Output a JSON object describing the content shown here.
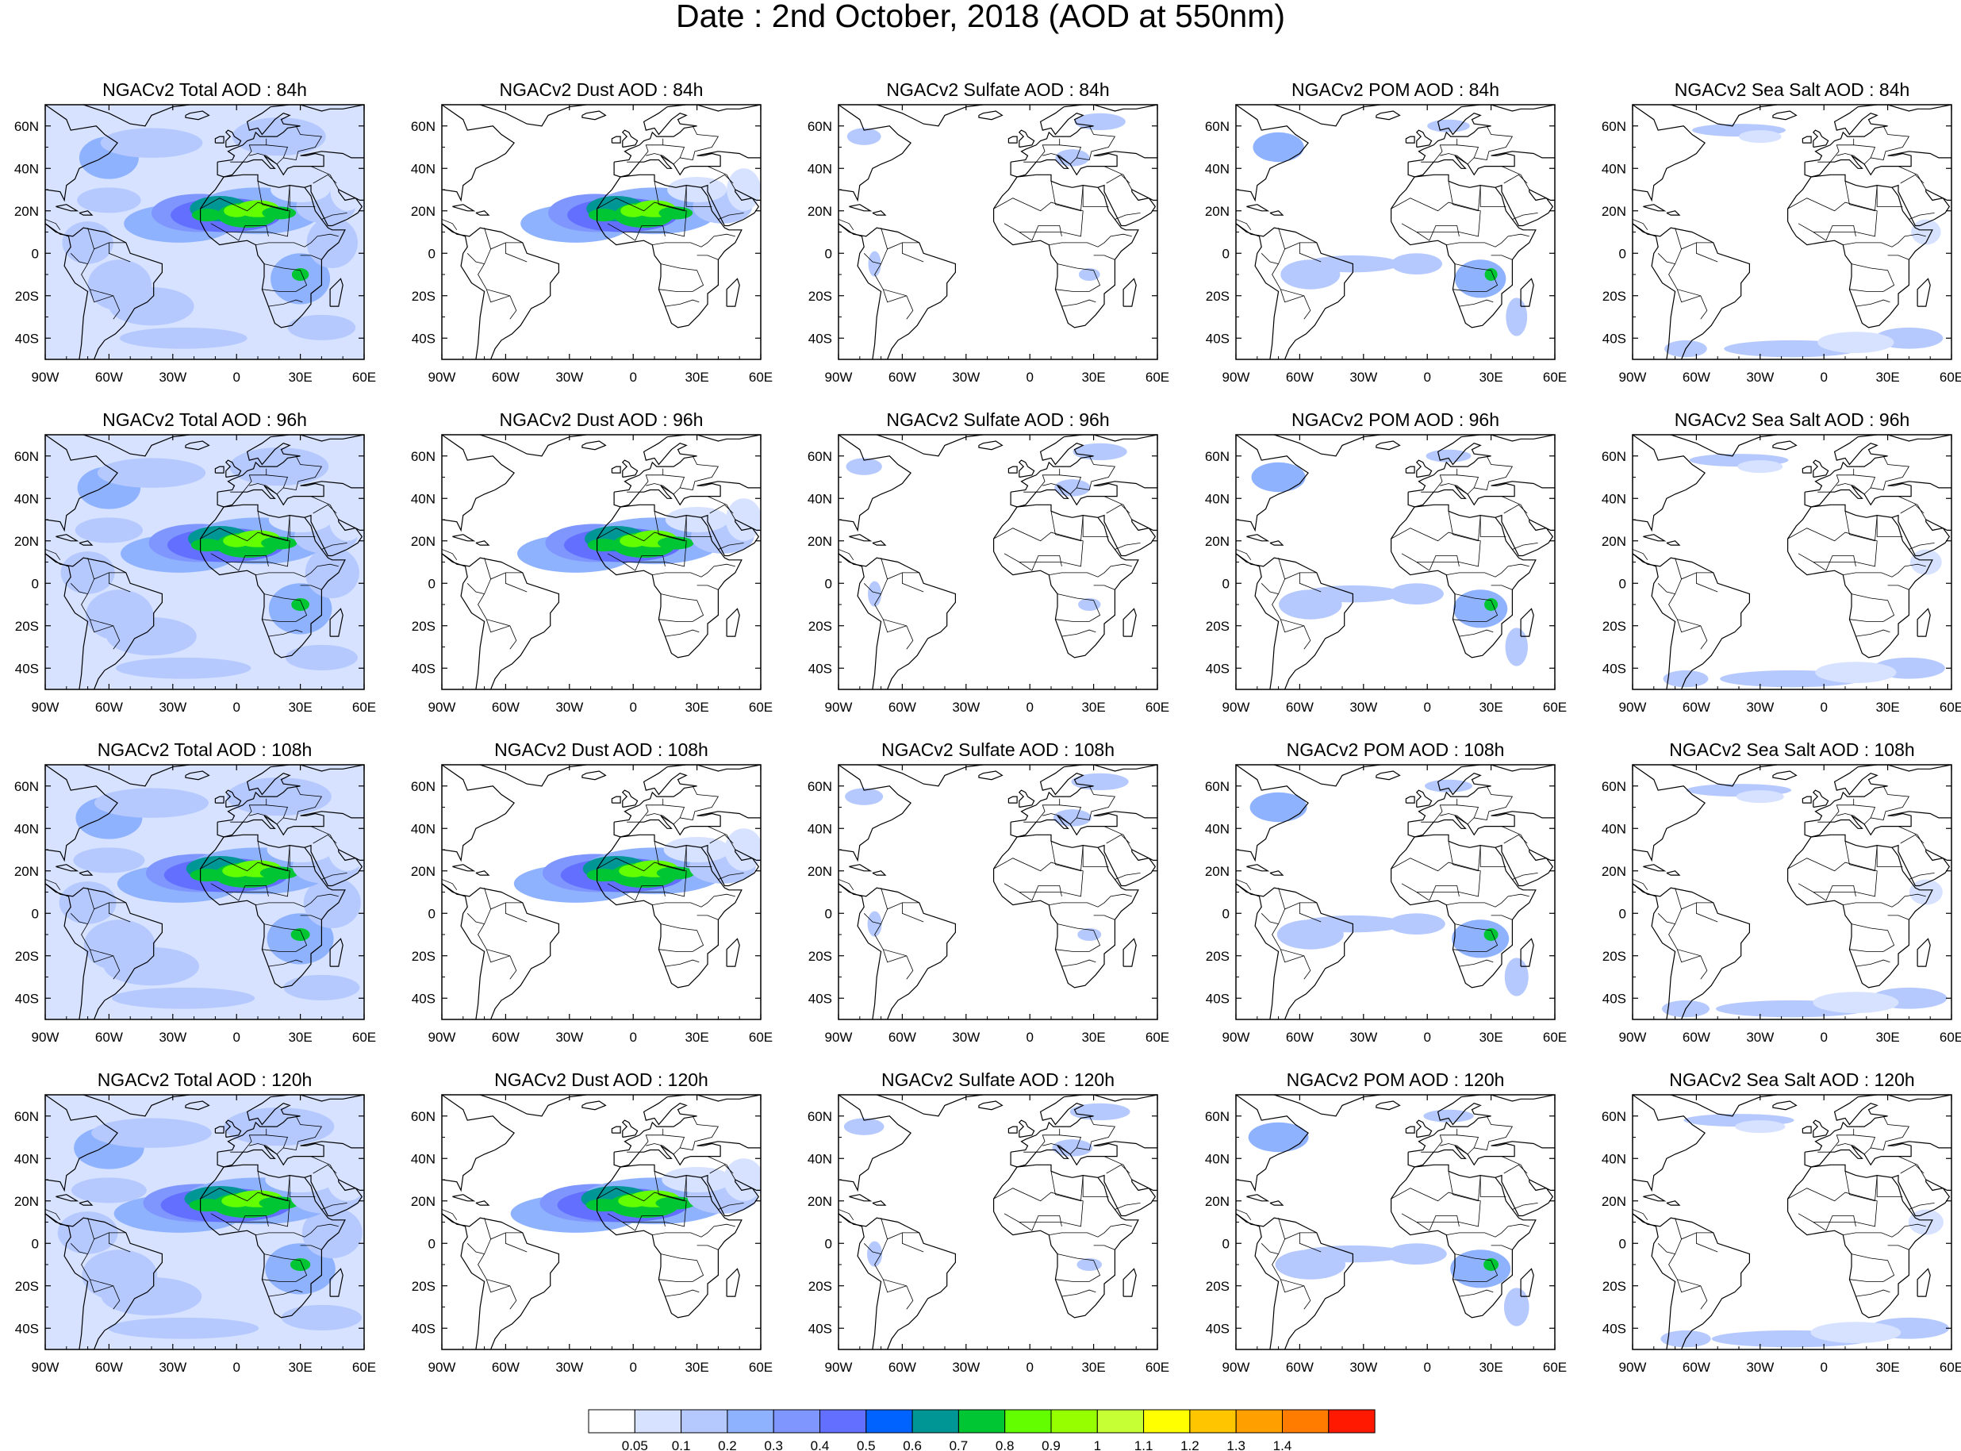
{
  "title": "Date : 2nd October, 2018 (AOD at 550nm)",
  "columns": [
    "Total",
    "Dust",
    "Sulfate",
    "POM",
    "Sea Salt"
  ],
  "forecast_hours": [
    "84h",
    "96h",
    "108h",
    "120h"
  ],
  "panel_titles": [
    [
      "NGACv2 Total AOD : 84h",
      "NGACv2 Dust AOD : 84h",
      "NGACv2 Sulfate AOD : 84h",
      "NGACv2 POM AOD : 84h",
      "NGACv2 Sea Salt AOD : 84h"
    ],
    [
      "NGACv2 Total AOD : 96h",
      "NGACv2 Dust AOD : 96h",
      "NGACv2 Sulfate AOD : 96h",
      "NGACv2 POM AOD : 96h",
      "NGACv2 Sea Salt AOD : 96h"
    ],
    [
      "NGACv2 Total AOD : 108h",
      "NGACv2 Dust AOD : 108h",
      "NGACv2 Sulfate AOD : 108h",
      "NGACv2 POM AOD : 108h",
      "NGACv2 Sea Salt AOD : 108h"
    ],
    [
      "NGACv2 Total AOD : 120h",
      "NGACv2 Dust AOD : 120h",
      "NGACv2 Sulfate AOD : 120h",
      "NGACv2 POM AOD : 120h",
      "NGACv2 Sea Salt  AOD : 120h"
    ]
  ],
  "map": {
    "lon_range": [
      -90,
      60
    ],
    "lat_range": [
      -50,
      70
    ],
    "lon_ticks": [
      "90W",
      "60W",
      "30W",
      "0",
      "30E",
      "60E"
    ],
    "lat_ticks": [
      "60N",
      "40N",
      "20N",
      "0",
      "20S",
      "40S"
    ]
  },
  "colorbar": {
    "levels": [
      "0.05",
      "0.1",
      "0.2",
      "0.3",
      "0.4",
      "0.5",
      "0.6",
      "0.7",
      "0.8",
      "0.9",
      "1",
      "1.1",
      "1.2",
      "1.3",
      "1.4"
    ],
    "colors": [
      "#ffffff",
      "#d6e2ff",
      "#b5c9ff",
      "#8fb2ff",
      "#7f96ff",
      "#6370ff",
      "#0063ff",
      "#009696",
      "#00c633",
      "#63ff00",
      "#96ff00",
      "#c6ff33",
      "#ffff00",
      "#ffc600",
      "#ffa000",
      "#ff7c00",
      "#ff1900"
    ]
  }
}
